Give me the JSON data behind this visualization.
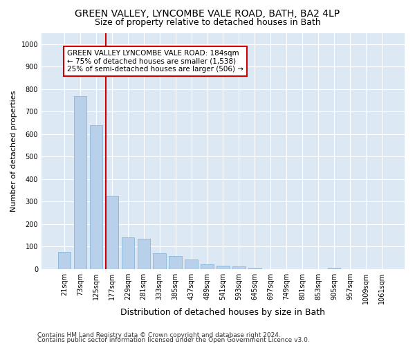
{
  "title": "GREEN VALLEY, LYNCOMBE VALE ROAD, BATH, BA2 4LP",
  "subtitle": "Size of property relative to detached houses in Bath",
  "xlabel": "Distribution of detached houses by size in Bath",
  "ylabel": "Number of detached properties",
  "footnote1": "Contains HM Land Registry data © Crown copyright and database right 2024.",
  "footnote2": "Contains public sector information licensed under the Open Government Licence v3.0.",
  "annotation_line1": "GREEN VALLEY LYNCOMBE VALE ROAD: 184sqm",
  "annotation_line2": "← 75% of detached houses are smaller (1,538)",
  "annotation_line3": "25% of semi-detached houses are larger (506) →",
  "bins": [
    "21sqm",
    "73sqm",
    "125sqm",
    "177sqm",
    "229sqm",
    "281sqm",
    "333sqm",
    "385sqm",
    "437sqm",
    "489sqm",
    "541sqm",
    "593sqm",
    "645sqm",
    "697sqm",
    "749sqm",
    "801sqm",
    "853sqm",
    "905sqm",
    "957sqm",
    "1009sqm",
    "1061sqm"
  ],
  "values": [
    75,
    770,
    640,
    325,
    140,
    135,
    70,
    58,
    42,
    20,
    14,
    13,
    5,
    0,
    0,
    0,
    0,
    5,
    0,
    0,
    0
  ],
  "bar_color": "#b8d0ea",
  "bar_edge_color": "#7aafd4",
  "vline_x_index": 3,
  "vline_color": "#cc0000",
  "annotation_box_edge": "#cc0000",
  "background_color": "#dde8f5",
  "ylim": [
    0,
    1050
  ],
  "yticks": [
    0,
    100,
    200,
    300,
    400,
    500,
    600,
    700,
    800,
    900,
    1000
  ],
  "title_fontsize": 10,
  "subtitle_fontsize": 9,
  "ylabel_fontsize": 8,
  "xlabel_fontsize": 9,
  "tick_fontsize": 7,
  "annotation_fontsize": 7.5,
  "footnote_fontsize": 6.5
}
